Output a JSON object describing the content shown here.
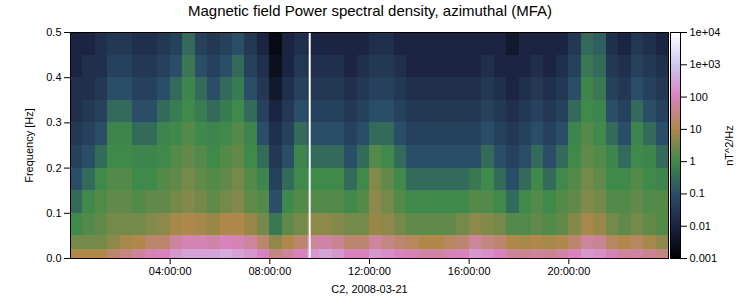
{
  "chart_data": {
    "type": "heatmap",
    "title": "Magnetic field Power spectral density, azimuthal (MFA)",
    "xlabel": "C2, 2008-03-21",
    "ylabel": "Frequency [Hz]",
    "xlim": [
      0,
      24
    ],
    "ylim": [
      0,
      0.5
    ],
    "xticks": [
      {
        "value": 4,
        "label": "04:00:00"
      },
      {
        "value": 8,
        "label": "08:00:00"
      },
      {
        "value": 12,
        "label": "12:00:00"
      },
      {
        "value": 16,
        "label": "16:00:00"
      },
      {
        "value": 20,
        "label": "20:00:00"
      }
    ],
    "yticks": [
      {
        "value": 0,
        "label": "0.0"
      },
      {
        "value": 0.1,
        "label": "0.1"
      },
      {
        "value": 0.2,
        "label": "0.2"
      },
      {
        "value": 0.3,
        "label": "0.3"
      },
      {
        "value": 0.4,
        "label": "0.4"
      },
      {
        "value": 0.5,
        "label": "0.5"
      }
    ],
    "x_bins": [
      0,
      0.5,
      1,
      1.5,
      2,
      2.5,
      3,
      3.5,
      4,
      4.5,
      5,
      5.5,
      6,
      6.5,
      7,
      7.5,
      8,
      8.5,
      9,
      9.5,
      10,
      10.5,
      11,
      11.5,
      12,
      12.5,
      13,
      13.5,
      14,
      14.5,
      15,
      15.5,
      16,
      16.5,
      17,
      17.5,
      18,
      18.5,
      19,
      19.5,
      20,
      20.5,
      21,
      21.5,
      22,
      22.5,
      23,
      23.5,
      24
    ],
    "y_bins": [
      0,
      0.02,
      0.05,
      0.1,
      0.15,
      0.2,
      0.25,
      0.3,
      0.35,
      0.4,
      0.45,
      0.5
    ],
    "values": [
      [
        10,
        10,
        10,
        20,
        30,
        50,
        80,
        100,
        200,
        300,
        300,
        300,
        400,
        300,
        200,
        100,
        30,
        50,
        100,
        200,
        300,
        200,
        100,
        100,
        200,
        150,
        100,
        80,
        60,
        60,
        80,
        100,
        200,
        150,
        100,
        50,
        40,
        50,
        40,
        60,
        100,
        200,
        150,
        80,
        50,
        60,
        40,
        30
      ],
      [
        3,
        3,
        3,
        5,
        8,
        10,
        20,
        20,
        50,
        80,
        80,
        60,
        100,
        80,
        50,
        20,
        5,
        10,
        20,
        50,
        60,
        40,
        20,
        20,
        50,
        30,
        20,
        15,
        10,
        10,
        15,
        20,
        50,
        30,
        20,
        10,
        8,
        10,
        8,
        10,
        20,
        50,
        40,
        15,
        10,
        15,
        8,
        5
      ],
      [
        1,
        1.5,
        2,
        3,
        3,
        3,
        4,
        5,
        8,
        10,
        8,
        6,
        10,
        10,
        6,
        3,
        0.5,
        2,
        3,
        5,
        5,
        4,
        3,
        3,
        6,
        5,
        3,
        2,
        2,
        2,
        2,
        3,
        5,
        4,
        3,
        1.5,
        1.5,
        2,
        1.5,
        2,
        4,
        8,
        6,
        3,
        2,
        3,
        2,
        1.5
      ],
      [
        0.3,
        1,
        1.5,
        2,
        2,
        1.5,
        2,
        2,
        3,
        4,
        3,
        2,
        3,
        4,
        2,
        1.5,
        0.1,
        1,
        1.5,
        1.5,
        1.5,
        1.5,
        1,
        1.5,
        5,
        3,
        1.5,
        1,
        1,
        1,
        1,
        1,
        1.5,
        1.5,
        1,
        0.3,
        1,
        1.5,
        1,
        1.5,
        2,
        4,
        3,
        1.5,
        1.5,
        2,
        1.5,
        1.5
      ],
      [
        0.1,
        0.3,
        1,
        1.5,
        1.5,
        1,
        1,
        1.5,
        2,
        3,
        2,
        1.5,
        2,
        3,
        1.5,
        0.8,
        0.05,
        0.3,
        1,
        1,
        1,
        1,
        0.3,
        1,
        4,
        2,
        1,
        0.3,
        0.3,
        0.3,
        0.3,
        0.3,
        0.5,
        1,
        0.3,
        0.1,
        0.3,
        1,
        0.3,
        1,
        1.5,
        3,
        2,
        1,
        1,
        1.5,
        1,
        0.8
      ],
      [
        0.05,
        0.1,
        0.3,
        1,
        1,
        0.8,
        0.8,
        1,
        1.5,
        2,
        1.5,
        1,
        1.5,
        2,
        1,
        0.3,
        0.03,
        0.1,
        0.8,
        0.3,
        0.3,
        0.3,
        0.1,
        0.3,
        1.5,
        1,
        0.3,
        0.1,
        0.1,
        0.1,
        0.1,
        0.1,
        0.1,
        0.3,
        0.1,
        0.05,
        0.1,
        0.3,
        0.1,
        0.3,
        1,
        2,
        1.5,
        0.8,
        0.3,
        1,
        0.8,
        0.3
      ],
      [
        0.03,
        0.05,
        0.1,
        0.8,
        0.8,
        0.3,
        0.3,
        0.8,
        1,
        1.5,
        1,
        0.8,
        1,
        1.5,
        0.8,
        0.1,
        0.02,
        0.05,
        0.3,
        0.1,
        0.1,
        0.1,
        0.05,
        0.1,
        0.3,
        0.3,
        0.1,
        0.05,
        0.05,
        0.05,
        0.05,
        0.05,
        0.05,
        0.1,
        0.05,
        0.03,
        0.05,
        0.1,
        0.05,
        0.1,
        0.8,
        1.5,
        1,
        0.3,
        0.1,
        0.8,
        0.3,
        0.1
      ],
      [
        0.02,
        0.03,
        0.05,
        0.3,
        0.3,
        0.1,
        0.1,
        0.3,
        0.6,
        1,
        0.6,
        0.3,
        0.6,
        1,
        0.3,
        0.05,
        0.01,
        0.03,
        0.1,
        0.05,
        0.05,
        0.05,
        0.03,
        0.05,
        0.1,
        0.1,
        0.05,
        0.03,
        0.03,
        0.03,
        0.03,
        0.03,
        0.03,
        0.05,
        0.03,
        0.02,
        0.03,
        0.05,
        0.03,
        0.05,
        0.3,
        1,
        0.8,
        0.1,
        0.05,
        0.3,
        0.1,
        0.05
      ],
      [
        0.02,
        0.02,
        0.03,
        0.1,
        0.1,
        0.05,
        0.05,
        0.1,
        0.3,
        0.8,
        0.3,
        0.1,
        0.3,
        0.6,
        0.1,
        0.03,
        0.005,
        0.02,
        0.05,
        0.03,
        0.03,
        0.03,
        0.02,
        0.03,
        0.05,
        0.05,
        0.03,
        0.02,
        0.02,
        0.02,
        0.02,
        0.02,
        0.02,
        0.03,
        0.02,
        0.01,
        0.02,
        0.03,
        0.02,
        0.03,
        0.1,
        0.8,
        0.5,
        0.05,
        0.03,
        0.1,
        0.05,
        0.03
      ],
      [
        0.01,
        0.02,
        0.02,
        0.05,
        0.05,
        0.03,
        0.03,
        0.05,
        0.1,
        0.5,
        0.1,
        0.05,
        0.1,
        0.3,
        0.05,
        0.02,
        0.003,
        0.01,
        0.03,
        0.02,
        0.02,
        0.02,
        0.01,
        0.02,
        0.03,
        0.03,
        0.02,
        0.01,
        0.01,
        0.01,
        0.01,
        0.01,
        0.01,
        0.02,
        0.01,
        0.01,
        0.01,
        0.02,
        0.01,
        0.02,
        0.05,
        0.5,
        0.3,
        0.03,
        0.02,
        0.05,
        0.03,
        0.02
      ],
      [
        0.01,
        0.01,
        0.02,
        0.03,
        0.03,
        0.02,
        0.02,
        0.03,
        0.05,
        0.3,
        0.05,
        0.03,
        0.05,
        0.1,
        0.03,
        0.01,
        0.002,
        0.01,
        0.02,
        0.01,
        0.01,
        0.01,
        0.01,
        0.01,
        0.02,
        0.02,
        0.01,
        0.01,
        0.01,
        0.01,
        0.01,
        0.01,
        0.01,
        0.01,
        0.01,
        0.005,
        0.01,
        0.01,
        0.01,
        0.01,
        0.03,
        0.3,
        0.2,
        0.02,
        0.01,
        0.03,
        0.02,
        0.01
      ]
    ],
    "data_gap": 9.6,
    "colorbar_range": [
      0.001,
      10000
    ],
    "colorbar_ticks": [
      {
        "value": 10000,
        "label": "1e+04"
      },
      {
        "value": 1000,
        "label": "1e+03"
      },
      100,
      10,
      1,
      0.1,
      0.01,
      0.001
    ],
    "colorbar_label": "nT^2/Hz"
  }
}
